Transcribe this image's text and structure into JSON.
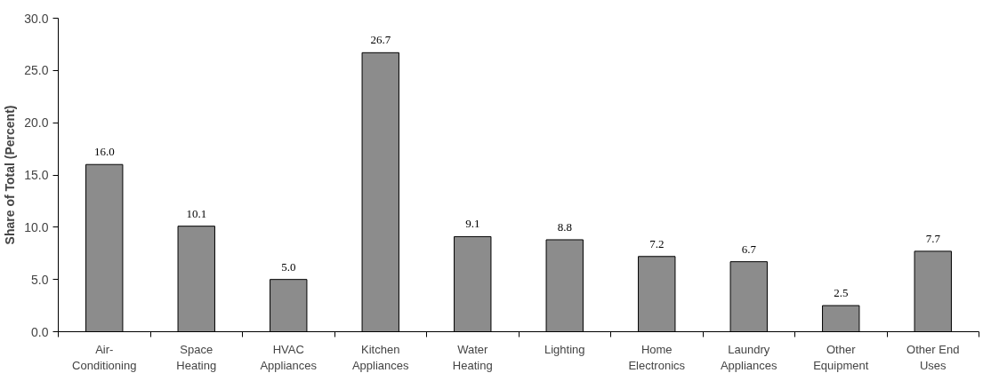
{
  "chart_data": {
    "type": "bar",
    "ylabel": "Share of Total (Percent)",
    "categories": [
      "Air-\nConditioning",
      "Space\nHeating",
      "HVAC\nAppliances",
      "Kitchen\nAppliances",
      "Water\nHeating",
      "Lighting",
      "Home\nElectronics",
      "Laundry\nAppliances",
      "Other\nEquipment",
      "Other End\nUses"
    ],
    "values": [
      16.0,
      10.1,
      5.0,
      26.7,
      9.1,
      8.8,
      7.2,
      6.7,
      2.5,
      7.7
    ],
    "value_labels": [
      "16.0",
      "10.1",
      "5.0",
      "26.7",
      "9.1",
      "8.8",
      "7.2",
      "6.7",
      "2.5",
      "7.7"
    ],
    "color": "#8c8c8c",
    "ylim": [
      0,
      30
    ],
    "yticks": [
      {
        "value": 0,
        "label": "0.0"
      },
      {
        "value": 5,
        "label": "5.0"
      },
      {
        "value": 10,
        "label": "10.0"
      },
      {
        "value": 15,
        "label": "15.0"
      },
      {
        "value": 20,
        "label": "20.0"
      },
      {
        "value": 25,
        "label": "25.0"
      },
      {
        "value": 30,
        "label": "30.0"
      }
    ],
    "grid": false
  }
}
